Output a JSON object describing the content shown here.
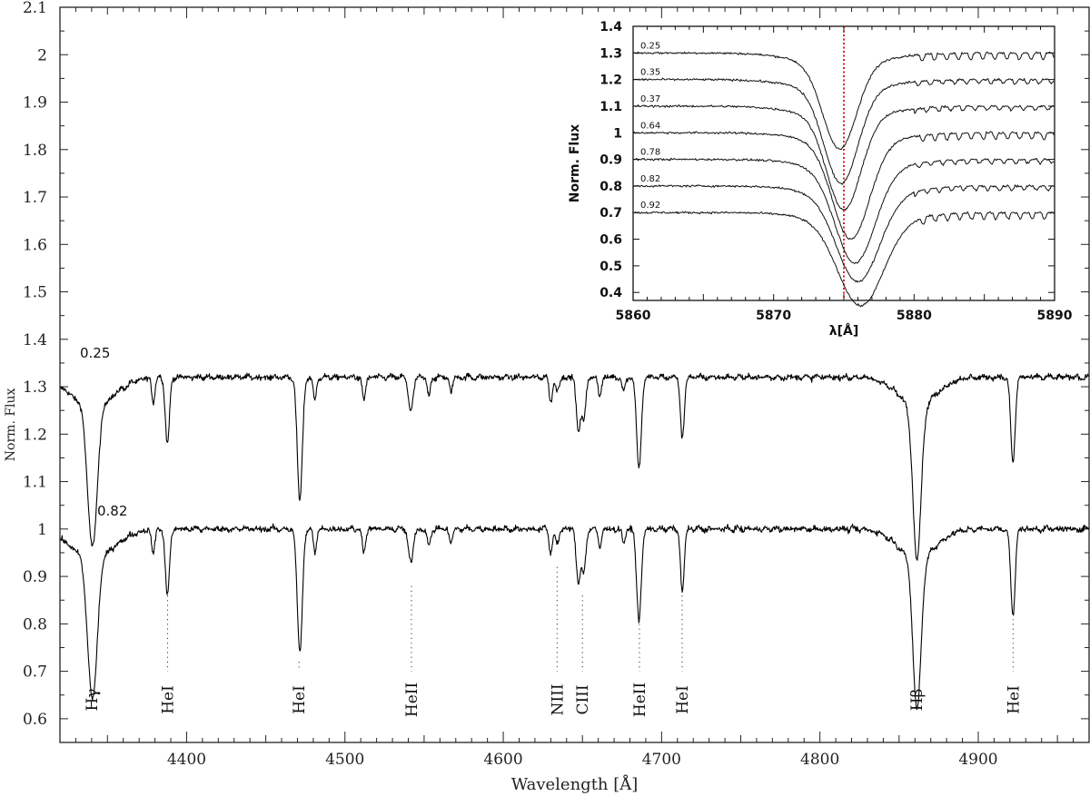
{
  "chart_data": [
    {
      "type": "line",
      "xlabel": "Wavelength [Å]",
      "ylabel": "Norm. Flux",
      "xlim": [
        4320,
        4970
      ],
      "ylim": [
        0.55,
        2.1
      ],
      "x_ticks": [
        "4400",
        "4500",
        "4600",
        "4700",
        "4800",
        "4900"
      ],
      "y_ticks": [
        "0.6",
        "0.7",
        "0.8",
        "0.9",
        "1",
        "1.1",
        "1.2",
        "1.3",
        "1.4",
        "1.5",
        "1.6",
        "1.7",
        "1.8",
        "1.9",
        "2",
        "2.1"
      ],
      "series": [
        {
          "name": "0.25",
          "offset": 1.32,
          "phase_label": "0.25",
          "color": "#000000"
        },
        {
          "name": "0.82",
          "offset": 1.0,
          "phase_label": "0.82",
          "color": "#000000"
        }
      ],
      "features": [
        {
          "lam": 4340.5,
          "depth": 0.3,
          "width": 3.0,
          "wing": 0.06,
          "wingWidth": 14
        },
        {
          "lam": 4387.9,
          "depth": 0.14,
          "width": 1.3
        },
        {
          "lam": 4471.5,
          "depth": 0.26,
          "width": 1.6
        },
        {
          "lam": 4541.6,
          "depth": 0.07,
          "width": 1.5
        },
        {
          "lam": 4634.0,
          "depth": 0.03,
          "width": 1.2
        },
        {
          "lam": 4647.4,
          "depth": 0.11,
          "width": 1.3
        },
        {
          "lam": 4650.8,
          "depth": 0.09,
          "width": 1.3
        },
        {
          "lam": 4685.7,
          "depth": 0.19,
          "width": 1.5
        },
        {
          "lam": 4713.1,
          "depth": 0.13,
          "width": 1.2
        },
        {
          "lam": 4861.3,
          "depth": 0.32,
          "width": 2.6,
          "wing": 0.06,
          "wingWidth": 12
        },
        {
          "lam": 4921.9,
          "depth": 0.18,
          "width": 1.4
        },
        {
          "lam": 4379.0,
          "depth": 0.05,
          "width": 1.0
        },
        {
          "lam": 4481.0,
          "depth": 0.05,
          "width": 1.0
        },
        {
          "lam": 4512.0,
          "depth": 0.05,
          "width": 1.0
        },
        {
          "lam": 4553.0,
          "depth": 0.04,
          "width": 1.0
        },
        {
          "lam": 4567.0,
          "depth": 0.03,
          "width": 1.0
        },
        {
          "lam": 4630.0,
          "depth": 0.05,
          "width": 1.0
        },
        {
          "lam": 4661.0,
          "depth": 0.04,
          "width": 1.0
        },
        {
          "lam": 4676.0,
          "depth": 0.03,
          "width": 1.0
        }
      ],
      "line_labels": [
        {
          "text": "Hγ",
          "lam": 4340,
          "marker_top": null
        },
        {
          "text": "HeI",
          "lam": 4388,
          "marker_top": 0.86
        },
        {
          "text": "HeI",
          "lam": 4471,
          "marker_top": 0.72
        },
        {
          "text": "HeII",
          "lam": 4542,
          "marker_top": 0.88
        },
        {
          "text": "NIII",
          "lam": 4634,
          "marker_top": 0.92
        },
        {
          "text": "CIII",
          "lam": 4650,
          "marker_top": 0.86
        },
        {
          "text": "HeII",
          "lam": 4686,
          "marker_top": 0.81
        },
        {
          "text": "HeI",
          "lam": 4713,
          "marker_top": 0.86
        },
        {
          "text": "Hβ",
          "lam": 4861,
          "marker_top": null
        },
        {
          "text": "HeI",
          "lam": 4922,
          "marker_top": 0.82
        }
      ]
    },
    {
      "type": "line",
      "xlabel": "λ[Å]",
      "ylabel": "Norm. Flux",
      "xlim": [
        5860,
        5890
      ],
      "ylim": [
        0.37,
        1.4
      ],
      "x_ticks": [
        "5860",
        "5870",
        "5880",
        "5890"
      ],
      "y_ticks": [
        "0.4",
        "0.5",
        "0.6",
        "0.7",
        "0.8",
        "0.9",
        "1",
        "1.1",
        "1.2",
        "1.3",
        "1.4"
      ],
      "reference_line": {
        "x": 5875.0,
        "color": "#e02020",
        "style": "dotted"
      },
      "series": [
        {
          "name": "0.25",
          "offset": 1.3,
          "center": 5874.7,
          "depth": 0.32,
          "width": 1.2
        },
        {
          "name": "0.35",
          "offset": 1.2,
          "center": 5874.8,
          "depth": 0.35,
          "width": 1.2
        },
        {
          "name": "0.37",
          "offset": 1.1,
          "center": 5875.0,
          "depth": 0.35,
          "width": 1.2
        },
        {
          "name": "0.64",
          "offset": 1.0,
          "center": 5875.5,
          "depth": 0.36,
          "width": 1.3
        },
        {
          "name": "0.78",
          "offset": 0.9,
          "center": 5875.8,
          "depth": 0.35,
          "width": 1.4
        },
        {
          "name": "0.82",
          "offset": 0.8,
          "center": 5876.0,
          "depth": 0.32,
          "width": 1.5
        },
        {
          "name": "0.92",
          "offset": 0.7,
          "center": 5876.2,
          "depth": 0.31,
          "width": 1.6
        }
      ]
    }
  ]
}
